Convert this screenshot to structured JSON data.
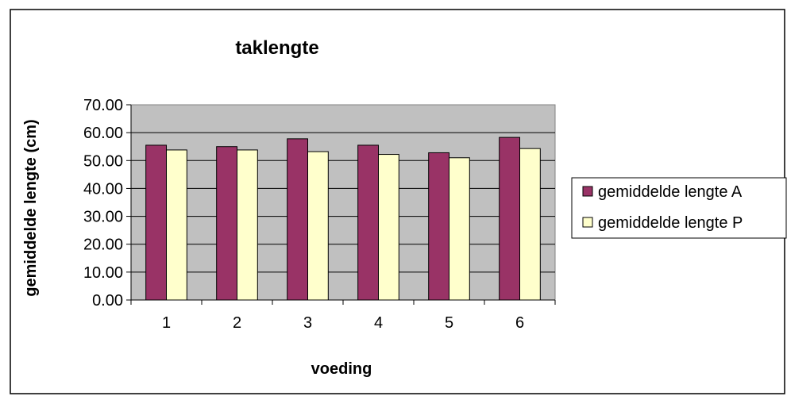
{
  "chart_data": {
    "type": "bar",
    "title": "taklengte",
    "xlabel": "voeding",
    "ylabel": "gemiddelde lengte (cm)",
    "categories": [
      "1",
      "2",
      "3",
      "4",
      "5",
      "6"
    ],
    "series": [
      {
        "name": "gemiddelde lengte A",
        "values": [
          55.5,
          55.0,
          57.8,
          55.5,
          52.8,
          58.3
        ]
      },
      {
        "name": "gemiddelde lengte P",
        "values": [
          53.8,
          53.8,
          53.2,
          52.2,
          51.0,
          54.3
        ]
      }
    ],
    "ylim": [
      0,
      70
    ],
    "ytick_step": 10,
    "ytick_labels": [
      "0.00",
      "10.00",
      "20.00",
      "30.00",
      "40.00",
      "50.00",
      "60.00",
      "70.00"
    ],
    "grid": true,
    "legend_position": "right",
    "colors": {
      "series_a": "#993366",
      "series_p": "#ffffcc",
      "plot_background": "#c0c0c0",
      "outline": "#000000"
    }
  }
}
